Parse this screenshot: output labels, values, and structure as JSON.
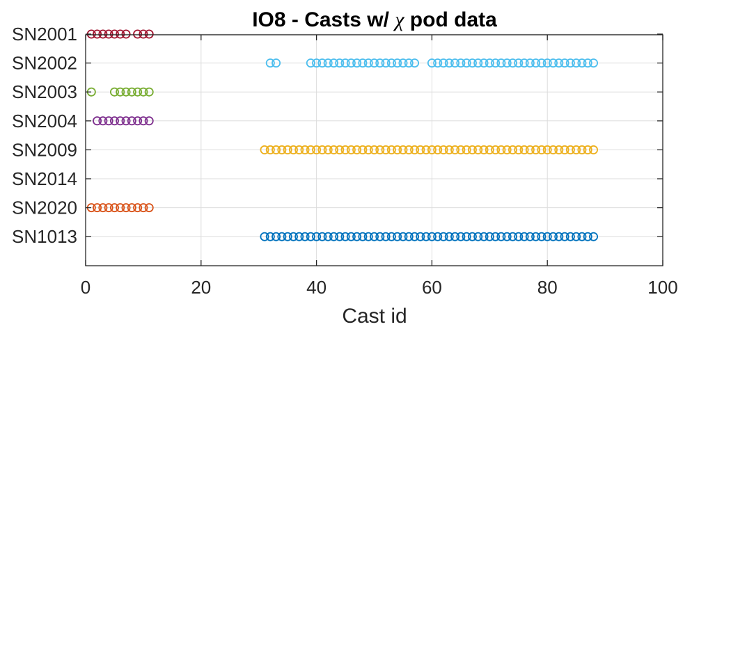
{
  "chart_data": {
    "type": "scatter",
    "title_prefix": "IO8 - Casts w/ ",
    "title_symbol": "χ",
    "title_suffix": " pod data",
    "xlabel": "Cast id",
    "ylabel": "",
    "xlim": [
      0,
      100
    ],
    "xticks": [
      0,
      20,
      40,
      60,
      80,
      100
    ],
    "grid": true,
    "marker": "open-circle",
    "categories": [
      "SN2001",
      "SN2002",
      "SN2003",
      "SN2004",
      "SN2009",
      "SN2014",
      "SN2020",
      "SN1013"
    ],
    "series": [
      {
        "name": "SN2001",
        "color": "#A2142F",
        "x": [
          1,
          2,
          3,
          4,
          5,
          6,
          7,
          9,
          10,
          11
        ]
      },
      {
        "name": "SN2002",
        "color": "#4DBEEE",
        "x": [
          32,
          33,
          39,
          40,
          41,
          42,
          43,
          44,
          45,
          46,
          47,
          48,
          49,
          50,
          51,
          52,
          53,
          54,
          55,
          56,
          57,
          60,
          61,
          62,
          63,
          64,
          65,
          66,
          67,
          68,
          69,
          70,
          71,
          72,
          73,
          74,
          75,
          76,
          77,
          78,
          79,
          80,
          81,
          82,
          83,
          84,
          85,
          86,
          87,
          88
        ]
      },
      {
        "name": "SN2003",
        "color": "#77AC30",
        "x": [
          1,
          5,
          6,
          7,
          8,
          9,
          10,
          11
        ]
      },
      {
        "name": "SN2004",
        "color": "#7E2F8E",
        "x": [
          2,
          3,
          4,
          5,
          6,
          7,
          8,
          9,
          10,
          11
        ]
      },
      {
        "name": "SN2009",
        "color": "#EDB120",
        "x": [
          31,
          32,
          33,
          34,
          35,
          36,
          37,
          38,
          39,
          40,
          41,
          42,
          43,
          44,
          45,
          46,
          47,
          48,
          49,
          50,
          51,
          52,
          53,
          54,
          55,
          56,
          57,
          58,
          59,
          60,
          61,
          62,
          63,
          64,
          65,
          66,
          67,
          68,
          69,
          70,
          71,
          72,
          73,
          74,
          75,
          76,
          77,
          78,
          79,
          80,
          81,
          82,
          83,
          84,
          85,
          86,
          87,
          88
        ]
      },
      {
        "name": "SN2014",
        "color": "#888888",
        "x": []
      },
      {
        "name": "SN2020",
        "color": "#D95319",
        "x": [
          1,
          2,
          3,
          4,
          5,
          6,
          7,
          8,
          9,
          10,
          11
        ]
      },
      {
        "name": "SN1013",
        "color": "#0072BD",
        "x": [
          31,
          32,
          33,
          34,
          35,
          36,
          37,
          38,
          39,
          40,
          41,
          42,
          43,
          44,
          45,
          46,
          47,
          48,
          49,
          50,
          51,
          52,
          53,
          54,
          55,
          56,
          57,
          58,
          59,
          60,
          61,
          62,
          63,
          64,
          65,
          66,
          67,
          68,
          69,
          70,
          71,
          72,
          73,
          74,
          75,
          76,
          77,
          78,
          79,
          80,
          81,
          82,
          83,
          84,
          85,
          86,
          87,
          88
        ]
      }
    ]
  }
}
